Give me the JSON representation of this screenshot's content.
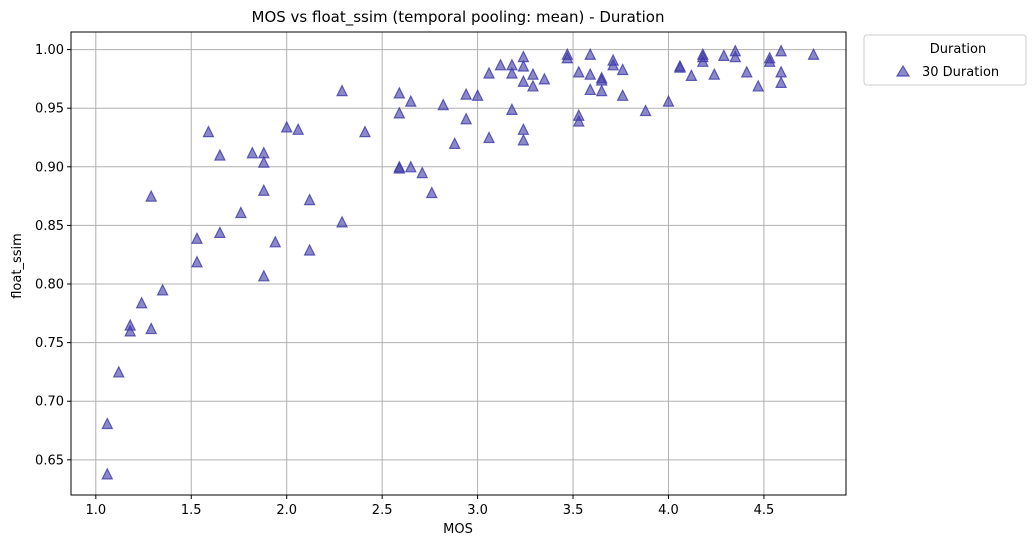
{
  "chart_data": {
    "type": "scatter",
    "title": "MOS vs float_ssim (temporal pooling: mean) - Duration",
    "xlabel": "MOS",
    "ylabel": "float_ssim",
    "xlim": [
      0.87,
      4.93
    ],
    "ylim": [
      0.62,
      1.015
    ],
    "xticks": [
      "1.0",
      "1.5",
      "2.0",
      "2.5",
      "3.0",
      "3.5",
      "4.0",
      "4.5"
    ],
    "xtick_values": [
      1.0,
      1.5,
      2.0,
      2.5,
      3.0,
      3.5,
      4.0,
      4.5
    ],
    "yticks": [
      "0.65",
      "0.70",
      "0.75",
      "0.80",
      "0.85",
      "0.90",
      "0.95",
      "1.00"
    ],
    "ytick_values": [
      0.65,
      0.7,
      0.75,
      0.8,
      0.85,
      0.9,
      0.95,
      1.0
    ],
    "grid": true,
    "legend": {
      "title": "Duration",
      "placement": "outside-top-right"
    },
    "series": [
      {
        "name": "30 Duration",
        "marker": "triangle",
        "color": "#3f3aa8",
        "points": [
          [
            1.06,
            0.681
          ],
          [
            1.06,
            0.638
          ],
          [
            1.12,
            0.725
          ],
          [
            1.18,
            0.765
          ],
          [
            1.18,
            0.76
          ],
          [
            1.24,
            0.784
          ],
          [
            1.29,
            0.875
          ],
          [
            1.29,
            0.762
          ],
          [
            1.35,
            0.795
          ],
          [
            1.53,
            0.839
          ],
          [
            1.53,
            0.819
          ],
          [
            1.59,
            0.93
          ],
          [
            1.65,
            0.91
          ],
          [
            1.65,
            0.844
          ],
          [
            1.76,
            0.861
          ],
          [
            1.82,
            0.912
          ],
          [
            1.88,
            0.912
          ],
          [
            1.88,
            0.904
          ],
          [
            1.88,
            0.88
          ],
          [
            1.88,
            0.807
          ],
          [
            1.94,
            0.836
          ],
          [
            2.0,
            0.934
          ],
          [
            2.06,
            0.932
          ],
          [
            2.12,
            0.872
          ],
          [
            2.12,
            0.829
          ],
          [
            2.29,
            0.965
          ],
          [
            2.29,
            0.853
          ],
          [
            2.41,
            0.93
          ],
          [
            2.59,
            0.963
          ],
          [
            2.59,
            0.946
          ],
          [
            2.59,
            0.9
          ],
          [
            2.59,
            0.899
          ],
          [
            2.65,
            0.956
          ],
          [
            2.65,
            0.9
          ],
          [
            2.71,
            0.895
          ],
          [
            2.76,
            0.878
          ],
          [
            2.82,
            0.953
          ],
          [
            2.88,
            0.92
          ],
          [
            2.94,
            0.962
          ],
          [
            2.94,
            0.941
          ],
          [
            3.0,
            0.961
          ],
          [
            3.06,
            0.98
          ],
          [
            3.06,
            0.925
          ],
          [
            3.12,
            0.987
          ],
          [
            3.18,
            0.987
          ],
          [
            3.18,
            0.98
          ],
          [
            3.18,
            0.949
          ],
          [
            3.24,
            0.994
          ],
          [
            3.24,
            0.986
          ],
          [
            3.24,
            0.973
          ],
          [
            3.24,
            0.932
          ],
          [
            3.24,
            0.923
          ],
          [
            3.29,
            0.979
          ],
          [
            3.29,
            0.969
          ],
          [
            3.35,
            0.975
          ],
          [
            3.47,
            0.996
          ],
          [
            3.47,
            0.993
          ],
          [
            3.53,
            0.981
          ],
          [
            3.53,
            0.944
          ],
          [
            3.53,
            0.939
          ],
          [
            3.59,
            0.996
          ],
          [
            3.59,
            0.979
          ],
          [
            3.59,
            0.966
          ],
          [
            3.65,
            0.976
          ],
          [
            3.65,
            0.974
          ],
          [
            3.65,
            0.965
          ],
          [
            3.71,
            0.991
          ],
          [
            3.71,
            0.987
          ],
          [
            3.76,
            0.983
          ],
          [
            3.76,
            0.961
          ],
          [
            3.88,
            0.948
          ],
          [
            4.0,
            0.956
          ],
          [
            4.06,
            0.986
          ],
          [
            4.06,
            0.985
          ],
          [
            4.12,
            0.978
          ],
          [
            4.18,
            0.996
          ],
          [
            4.18,
            0.994
          ],
          [
            4.18,
            0.99
          ],
          [
            4.24,
            0.979
          ],
          [
            4.29,
            0.995
          ],
          [
            4.35,
            0.999
          ],
          [
            4.35,
            0.994
          ],
          [
            4.41,
            0.981
          ],
          [
            4.47,
            0.969
          ],
          [
            4.53,
            0.993
          ],
          [
            4.53,
            0.99
          ],
          [
            4.59,
            0.999
          ],
          [
            4.59,
            0.981
          ],
          [
            4.59,
            0.972
          ],
          [
            4.76,
            0.996
          ]
        ]
      }
    ]
  }
}
